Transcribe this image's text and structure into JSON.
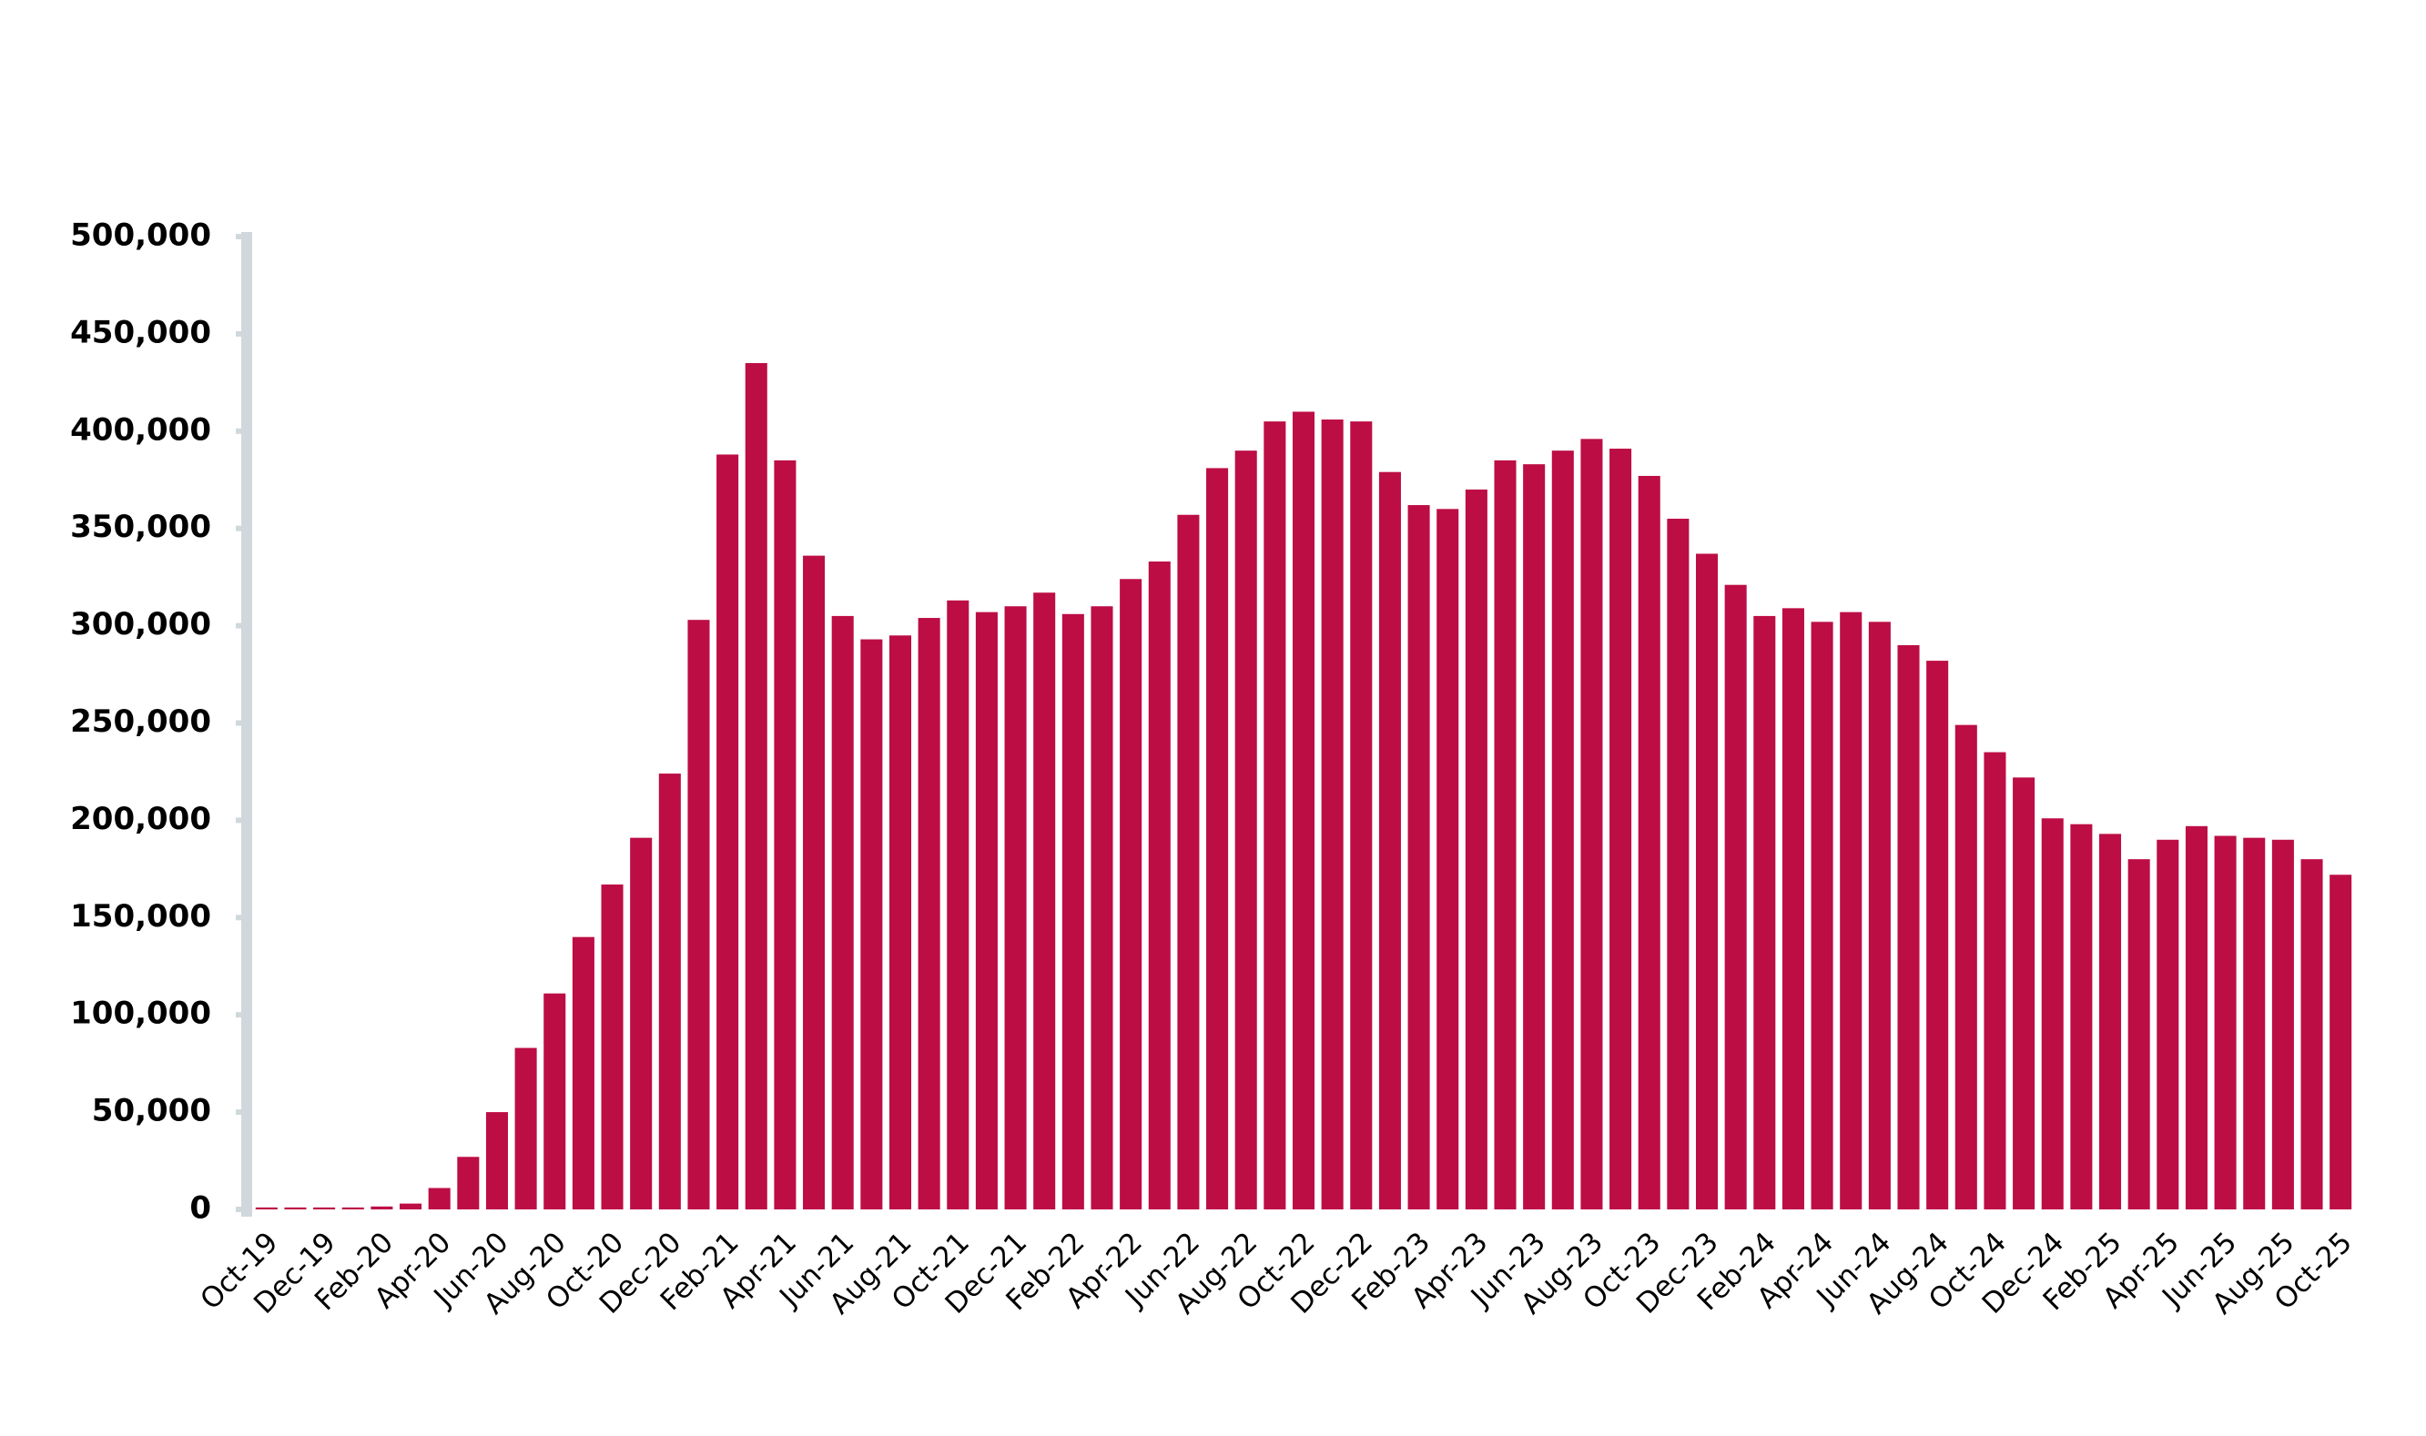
{
  "chart_data": {
    "type": "bar",
    "categories": [
      "Oct-19",
      null,
      "Dec-19",
      null,
      "Feb-20",
      null,
      "Apr-20",
      null,
      "Jun-20",
      null,
      "Aug-20",
      null,
      "Oct-20",
      null,
      "Dec-20",
      null,
      "Feb-21",
      null,
      "Apr-21",
      null,
      "Jun-21",
      null,
      "Aug-21",
      null,
      "Oct-21",
      null,
      "Dec-21",
      null,
      "Feb-22",
      null,
      "Apr-22",
      null,
      "Jun-22",
      null,
      "Aug-22",
      null,
      "Oct-22",
      null,
      "Dec-22",
      null,
      "Feb-23",
      null,
      "Apr-23",
      null,
      "Jun-23",
      null,
      "Aug-23",
      null,
      "Oct-23",
      null,
      "Dec-23",
      null,
      "Feb-24",
      null,
      "Apr-24",
      null,
      "Jun-24",
      null,
      "Aug-24",
      null,
      "Oct-24",
      null,
      "Dec-24",
      null,
      "Feb-25",
      null,
      "Apr-25",
      null,
      "Jun-25",
      null,
      "Aug-25",
      null,
      "Oct-25"
    ],
    "values": [
      1000,
      1000,
      1000,
      1000,
      1500,
      3000,
      11000,
      27000,
      50000,
      83000,
      111000,
      140000,
      167000,
      191000,
      224000,
      303000,
      388000,
      435000,
      385000,
      336000,
      305000,
      293000,
      295000,
      304000,
      313000,
      307000,
      310000,
      317000,
      306000,
      310000,
      324000,
      333000,
      357000,
      381000,
      390000,
      405000,
      410000,
      406000,
      405000,
      379000,
      362000,
      360000,
      370000,
      385000,
      383000,
      390000,
      396000,
      391000,
      377000,
      355000,
      337000,
      321000,
      305000,
      309000,
      302000,
      307000,
      302000,
      290000,
      282000,
      249000,
      235000,
      222000,
      201000,
      198000,
      193000,
      180000,
      190000,
      197000,
      192000,
      191000,
      190000,
      180000,
      172000
    ],
    "color": "#bd0d45",
    "ylim": [
      0,
      500000
    ],
    "yticks": [
      0,
      {
        "value": 50000,
        "label": "50,000"
      },
      {
        "value": 100000,
        "label": "100,000"
      },
      {
        "value": 150000,
        "label": "150,000"
      },
      {
        "value": 200000,
        "label": "200,000"
      },
      {
        "value": 250000,
        "label": "250,000"
      },
      {
        "value": 300000,
        "label": "300,000"
      },
      {
        "value": 350000,
        "label": "350,000"
      },
      {
        "value": 400000,
        "label": "400,000"
      },
      {
        "value": 450000,
        "label": "450,000"
      },
      {
        "value": 500000,
        "label": "500,000"
      }
    ],
    "grid": false
  }
}
